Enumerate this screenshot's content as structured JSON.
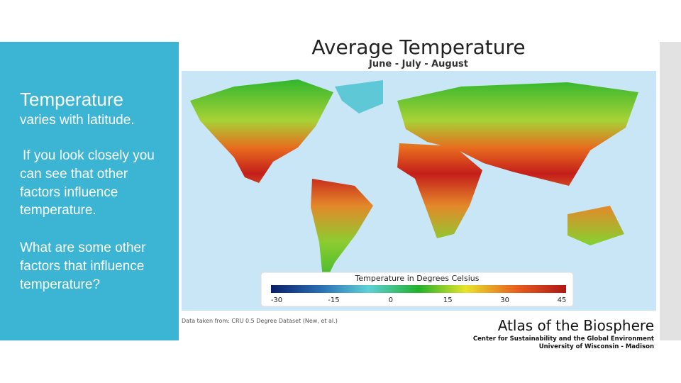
{
  "sidebar": {
    "heading": "Temperature",
    "paragraphs": [
      "varies with latitude.",
      "If you look closely you can see that other factors influence temperature.",
      "What are some other factors that influence temperature?"
    ]
  },
  "map": {
    "title": "Average  Temperature",
    "subtitle": "June - July - August",
    "legend": {
      "title": "Temperature in Degrees Celsius",
      "ticks": [
        -30,
        -15,
        0,
        15,
        30,
        45
      ]
    },
    "source": "Data taken from: CRU 0.5 Degree Dataset (New, et al.)",
    "credit": {
      "title": "Atlas of the Biosphere",
      "lines": [
        "Center for Sustainability and the Global Environment",
        "University of Wisconsin - Madison"
      ]
    }
  }
}
